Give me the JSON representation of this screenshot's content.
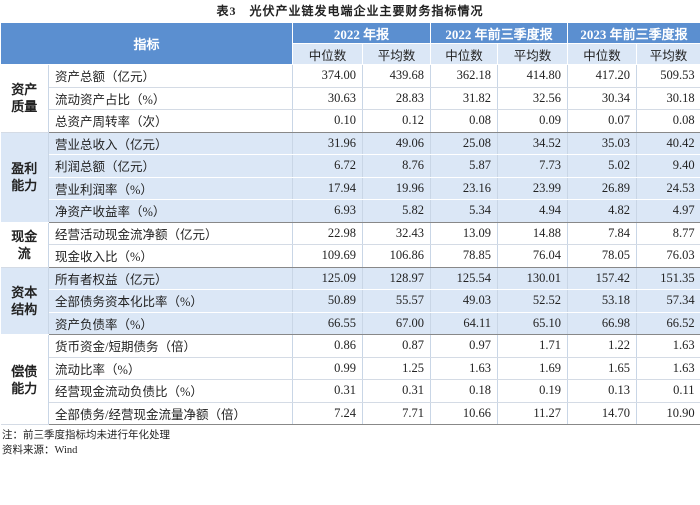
{
  "title": "表3　光伏产业链发电端企业主要财务指标情况",
  "header": {
    "indicator": "指标",
    "periods": [
      "2022 年报",
      "2022 年前三季度报",
      "2023 年前三季度报"
    ],
    "sub": [
      "中位数",
      "平均数",
      "中位数",
      "平均数",
      "中位数",
      "平均数"
    ]
  },
  "groups": [
    {
      "label": "资产\n质量",
      "rows": [
        {
          "name": "资产总额（亿元）",
          "values": [
            "374.00",
            "439.68",
            "362.18",
            "414.80",
            "417.20",
            "509.53"
          ]
        },
        {
          "name": "流动资产占比（%）",
          "values": [
            "30.63",
            "28.83",
            "31.82",
            "32.56",
            "30.34",
            "30.18"
          ]
        },
        {
          "name": "总资产周转率（次）",
          "values": [
            "0.10",
            "0.12",
            "0.08",
            "0.09",
            "0.07",
            "0.08"
          ]
        }
      ]
    },
    {
      "label": "盈利\n能力",
      "rows": [
        {
          "name": "营业总收入（亿元）",
          "values": [
            "31.96",
            "49.06",
            "25.08",
            "34.52",
            "35.03",
            "40.42"
          ]
        },
        {
          "name": "利润总额（亿元）",
          "values": [
            "6.72",
            "8.76",
            "5.87",
            "7.73",
            "5.02",
            "9.40"
          ]
        },
        {
          "name": "营业利润率（%）",
          "values": [
            "17.94",
            "19.96",
            "23.16",
            "23.99",
            "26.89",
            "24.53"
          ]
        },
        {
          "name": "净资产收益率（%）",
          "values": [
            "6.93",
            "5.82",
            "5.34",
            "4.94",
            "4.82",
            "4.97"
          ]
        }
      ]
    },
    {
      "label": "现金\n流",
      "rows": [
        {
          "name": "经营活动现金流净额（亿元）",
          "values": [
            "22.98",
            "32.43",
            "13.09",
            "14.88",
            "7.84",
            "8.77"
          ]
        },
        {
          "name": "现金收入比（%）",
          "values": [
            "109.69",
            "106.86",
            "78.85",
            "76.04",
            "78.05",
            "76.03"
          ]
        }
      ]
    },
    {
      "label": "资本\n结构",
      "rows": [
        {
          "name": "所有者权益（亿元）",
          "values": [
            "125.09",
            "128.97",
            "125.54",
            "130.01",
            "157.42",
            "151.35"
          ]
        },
        {
          "name": "全部债务资本化比率（%）",
          "values": [
            "50.89",
            "55.57",
            "49.03",
            "52.52",
            "53.18",
            "57.34"
          ]
        },
        {
          "name": "资产负债率（%）",
          "values": [
            "66.55",
            "67.00",
            "64.11",
            "65.10",
            "66.98",
            "66.52"
          ]
        }
      ]
    },
    {
      "label": "偿债\n能力",
      "rows": [
        {
          "name": "货币资金/短期债务（倍）",
          "values": [
            "0.86",
            "0.87",
            "0.97",
            "1.71",
            "1.22",
            "1.63"
          ]
        },
        {
          "name": "流动比率（%）",
          "values": [
            "0.99",
            "1.25",
            "1.63",
            "1.69",
            "1.65",
            "1.63"
          ]
        },
        {
          "name": "经营现金流动负债比（%）",
          "values": [
            "0.31",
            "0.31",
            "0.18",
            "0.19",
            "0.13",
            "0.11"
          ]
        },
        {
          "name": "全部债务/经营现金流量净额（倍）",
          "values": [
            "7.24",
            "7.71",
            "10.66",
            "11.27",
            "14.70",
            "10.90"
          ]
        }
      ]
    }
  ],
  "notes": [
    "注：前三季度指标均未进行年化处理",
    "资料来源：Wind"
  ]
}
